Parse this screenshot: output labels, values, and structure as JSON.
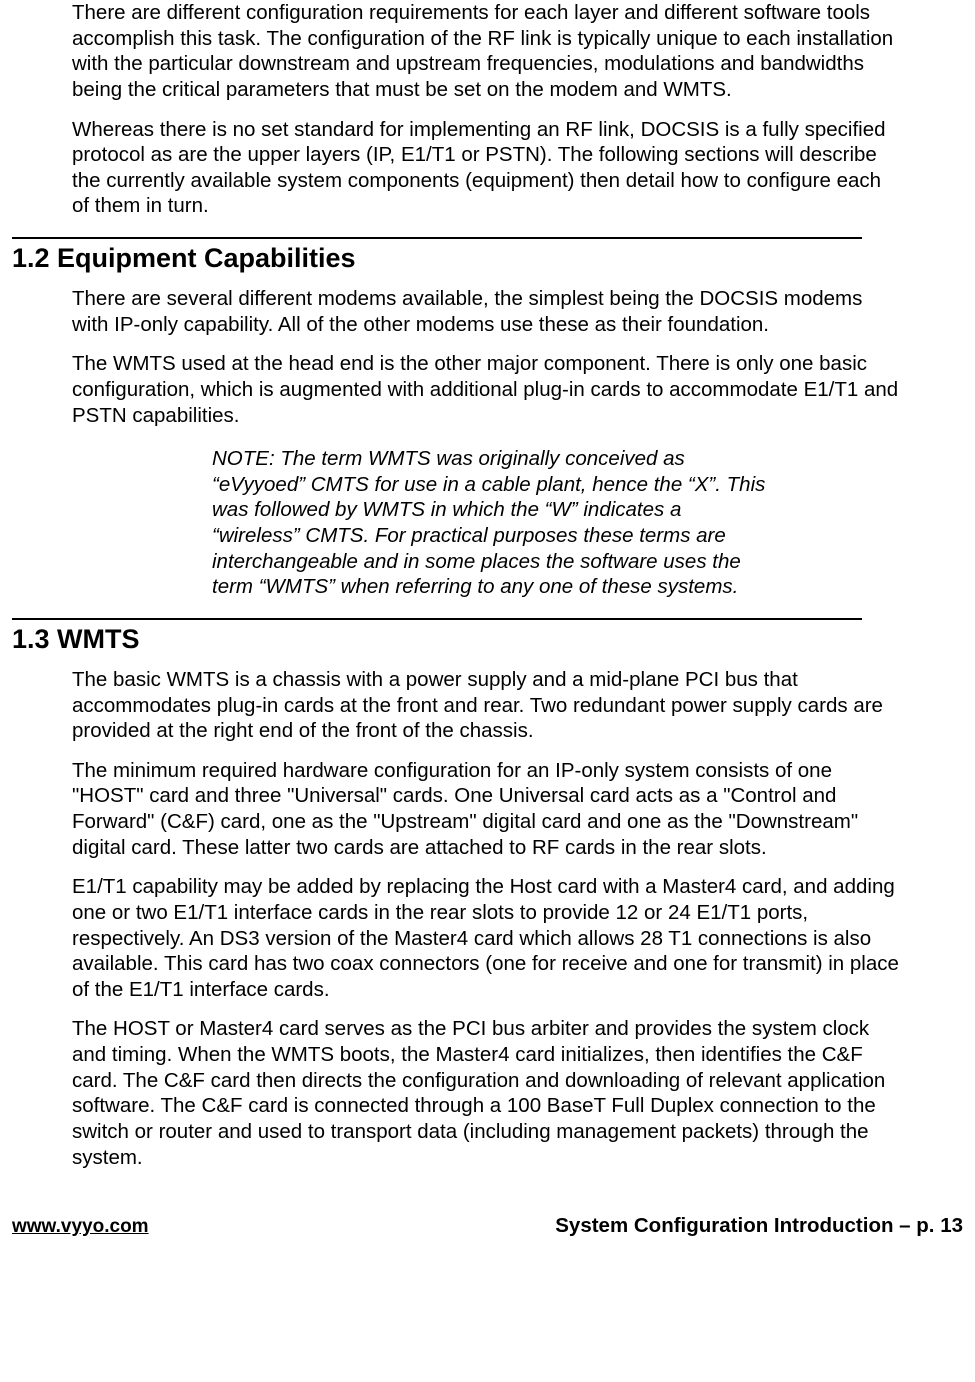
{
  "intro": {
    "p1": "There are different configuration requirements for each layer and different software tools accomplish this task. The configuration of the RF link is typically unique to each installation with the particular downstream and upstream frequencies, modulations and bandwidths being the critical parameters that must be set on the modem and WMTS.",
    "p2": "Whereas there is no set standard for implementing an RF link, DOCSIS is a fully specified protocol as are the upper layers (IP, E1/T1 or PSTN). The following sections will describe the currently available system components (equipment) then detail how to configure each of them in turn."
  },
  "section12": {
    "heading": "1.2  Equipment Capabilities",
    "p1": "There are several different modems available, the simplest being the DOCSIS modems with IP-only capability. All of the other modems use these as their foundation.",
    "p2": "The WMTS used at the head end is the other major component. There is only one basic configuration, which is augmented with additional plug-in cards to accommodate E1/T1 and PSTN capabilities.",
    "note": "NOTE:  The term WMTS was originally conceived as “eVyyoed” CMTS for use in a cable plant, hence the “X”. This was followed by WMTS in which the “W” indicates a “wireless” CMTS.  For practical purposes these terms are interchangeable and in some places the software uses the term “WMTS” when referring to any one of these systems."
  },
  "section13": {
    "heading": "1.3  WMTS",
    "p1": "The basic WMTS is a chassis with a power supply and a mid-plane PCI bus that accommodates plug-in cards at the front and rear.  Two redundant power supply cards are provided at the right end of the front of the chassis.",
    "p2": "The minimum required hardware configuration for an IP-only system consists of one \"HOST\" card and three \"Universal\" cards. One Universal card acts as a \"Control and Forward\" (C&F) card, one as the \"Upstream\" digital card and one as the \"Downstream\" digital card.  These latter two cards are attached to RF cards in the rear slots.",
    "p3": "E1/T1 capability may be added by replacing the Host card with a  Master4 card, and adding one or two E1/T1 interface cards in the rear slots to provide 12 or 24 E1/T1 ports, respectively.  An DS3 version of the Master4 card which allows 28 T1 connections is also available.  This card has two coax connectors (one for receive and one for transmit) in place of the E1/T1 interface cards.",
    "p4": "The HOST or Master4 card serves as the PCI bus arbiter and provides the system clock and timing. When the WMTS boots, the Master4 card initializes, then identifies the C&F card. The C&F card then directs the configuration and downloading of relevant application software.  The C&F card is connected through a 100 BaseT Full Duplex connection to the switch or router and used to transport data (including management packets) through the system."
  },
  "footer": {
    "url": "www.vyyo.com",
    "pageinfo": "System Configuration Introduction – p. 13"
  }
}
